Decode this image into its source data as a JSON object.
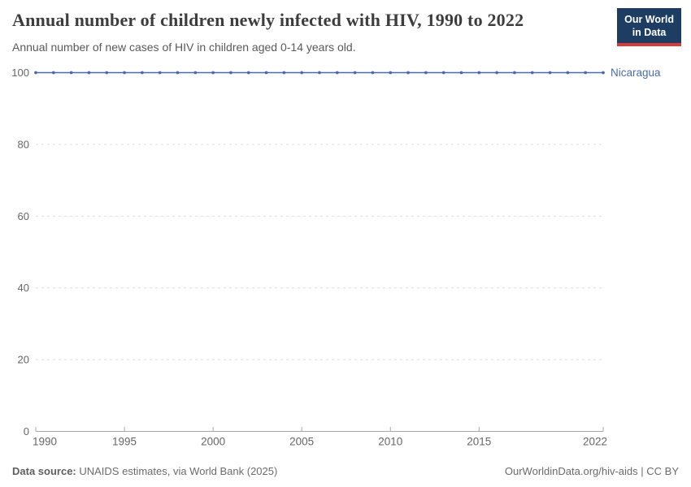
{
  "header": {
    "title": "Annual number of children newly infected with HIV, 1990 to 2022",
    "subtitle": "Annual number of new cases of HIV in children aged 0-14 years old.",
    "logo": {
      "line1": "Our World",
      "line2": "in Data"
    }
  },
  "footer": {
    "source_label": "Data source:",
    "source_text": " UNAIDS estimates, via World Bank (2025)",
    "credit": "OurWorldinData.org/hiv-aids | CC BY"
  },
  "colors": {
    "line": "#4C6BAC",
    "entity_label": "#4C6BAC",
    "grid": "#dcdcdc",
    "axis": "#a8a8a8",
    "tick_text": "#666666",
    "title_text": "#3d3d3d",
    "logo_bg": "#1d3d63",
    "logo_accent": "#d73c3c"
  },
  "chart_data": {
    "type": "line",
    "title": "Annual number of children newly infected with HIV, 1990 to 2022",
    "subtitle": "Annual number of new cases of HIV in children aged 0-14 years old.",
    "x": [
      1990,
      1991,
      1992,
      1993,
      1994,
      1995,
      1996,
      1997,
      1998,
      1999,
      2000,
      2001,
      2002,
      2003,
      2004,
      2005,
      2006,
      2007,
      2008,
      2009,
      2010,
      2011,
      2012,
      2013,
      2014,
      2015,
      2016,
      2017,
      2018,
      2019,
      2020,
      2021,
      2022
    ],
    "series": [
      {
        "name": "Nicaragua",
        "color": "#4C6BAC",
        "values": [
          100,
          100,
          100,
          100,
          100,
          100,
          100,
          100,
          100,
          100,
          100,
          100,
          100,
          100,
          100,
          100,
          100,
          100,
          100,
          100,
          100,
          100,
          100,
          100,
          100,
          100,
          100,
          100,
          100,
          100,
          100,
          100,
          100
        ]
      }
    ],
    "xlabel": "",
    "ylabel": "",
    "ylim": [
      0,
      100
    ],
    "yticks": [
      0,
      20,
      40,
      60,
      80,
      100
    ],
    "xticks": [
      1990,
      1995,
      2000,
      2005,
      2010,
      2015,
      2022
    ],
    "grid": "horizontal-dashed",
    "legend_position": "line-end-label"
  }
}
